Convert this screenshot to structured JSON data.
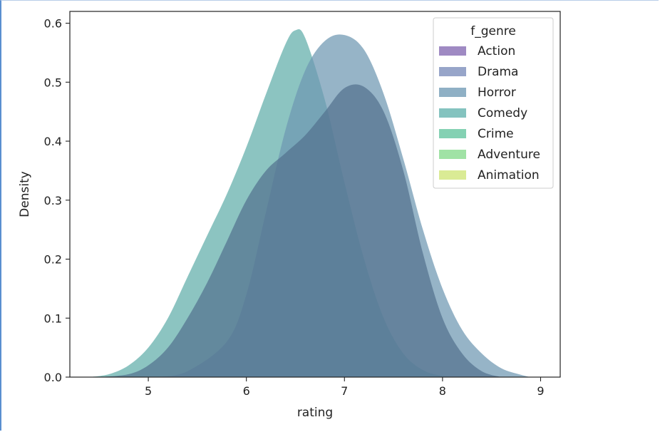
{
  "chart_data": {
    "type": "area",
    "xlabel": "rating",
    "ylabel": "Density",
    "xlim": [
      4.2,
      9.2
    ],
    "ylim": [
      0.0,
      0.62
    ],
    "xticks": [
      "5",
      "6",
      "7",
      "8",
      "9"
    ],
    "yticks": [
      "0.0",
      "0.1",
      "0.2",
      "0.3",
      "0.4",
      "0.5",
      "0.6"
    ],
    "legend": {
      "title": "f_genre",
      "placement": "top-right",
      "entries": [
        {
          "name": "Action",
          "color": "#8e75b8"
        },
        {
          "name": "Drama",
          "color": "#8595bf"
        },
        {
          "name": "Horror",
          "color": "#7ba2bb"
        },
        {
          "name": "Comedy",
          "color": "#6fb8b4"
        },
        {
          "name": "Crime",
          "color": "#6fc9a6"
        },
        {
          "name": "Adventure",
          "color": "#8fdd95"
        },
        {
          "name": "Animation",
          "color": "#d3e783"
        }
      ]
    },
    "series": [
      {
        "name": "Comedy",
        "color": "#5fada9",
        "x": [
          4.4,
          4.6,
          4.8,
          5.0,
          5.2,
          5.4,
          5.6,
          5.8,
          6.0,
          6.2,
          6.4,
          6.5,
          6.6,
          6.8,
          7.0,
          7.2,
          7.4,
          7.6,
          7.8,
          8.0,
          8.2
        ],
        "y": [
          0.0,
          0.005,
          0.02,
          0.05,
          0.1,
          0.17,
          0.24,
          0.31,
          0.39,
          0.48,
          0.565,
          0.588,
          0.575,
          0.47,
          0.33,
          0.2,
          0.1,
          0.04,
          0.012,
          0.002,
          0.0
        ]
      },
      {
        "name": "Horror",
        "color": "#6e97b2",
        "x": [
          5.1,
          5.4,
          5.8,
          6.0,
          6.2,
          6.4,
          6.6,
          6.8,
          7.0,
          7.2,
          7.4,
          7.6,
          7.8,
          8.0,
          8.2,
          8.4,
          8.6,
          8.8,
          8.9
        ],
        "y": [
          0.0,
          0.01,
          0.06,
          0.14,
          0.28,
          0.42,
          0.52,
          0.57,
          0.58,
          0.555,
          0.48,
          0.37,
          0.25,
          0.15,
          0.08,
          0.04,
          0.015,
          0.004,
          0.0
        ]
      },
      {
        "name": "Drama",
        "color": "#53718f",
        "x": [
          4.5,
          4.8,
          5.0,
          5.2,
          5.4,
          5.6,
          5.8,
          6.0,
          6.2,
          6.4,
          6.6,
          6.8,
          7.0,
          7.2,
          7.4,
          7.6,
          7.8,
          8.0,
          8.2,
          8.4,
          8.6
        ],
        "y": [
          0.0,
          0.005,
          0.02,
          0.05,
          0.1,
          0.16,
          0.23,
          0.3,
          0.35,
          0.38,
          0.41,
          0.45,
          0.49,
          0.492,
          0.45,
          0.35,
          0.21,
          0.1,
          0.04,
          0.01,
          0.0
        ]
      }
    ]
  }
}
